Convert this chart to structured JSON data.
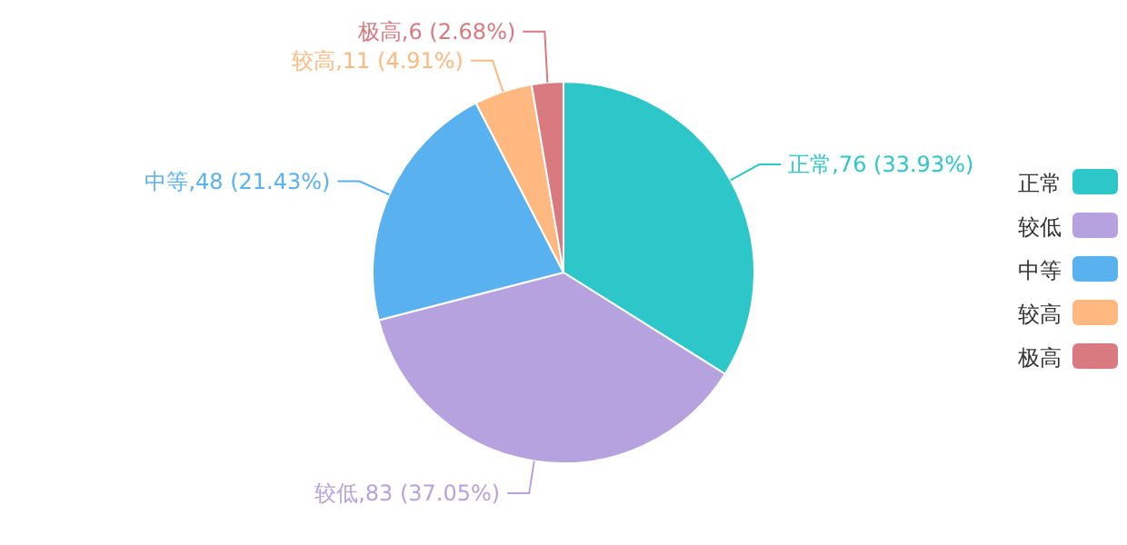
{
  "chart_data": {
    "type": "pie",
    "categories": [
      "正常",
      "较低",
      "中等",
      "较高",
      "极高"
    ],
    "values": [
      76,
      83,
      48,
      11,
      6
    ],
    "value_labels": [
      ",76 (33.93%)",
      ",83 (37.05%)",
      ",48 (21.43%)",
      ",11 (4.91%)",
      ",6 (2.68%)"
    ],
    "colors": [
      "#2ec7c9",
      "#b6a2de",
      "#5ab1ef",
      "#ffb980",
      "#d87a80"
    ],
    "legend": "right"
  }
}
